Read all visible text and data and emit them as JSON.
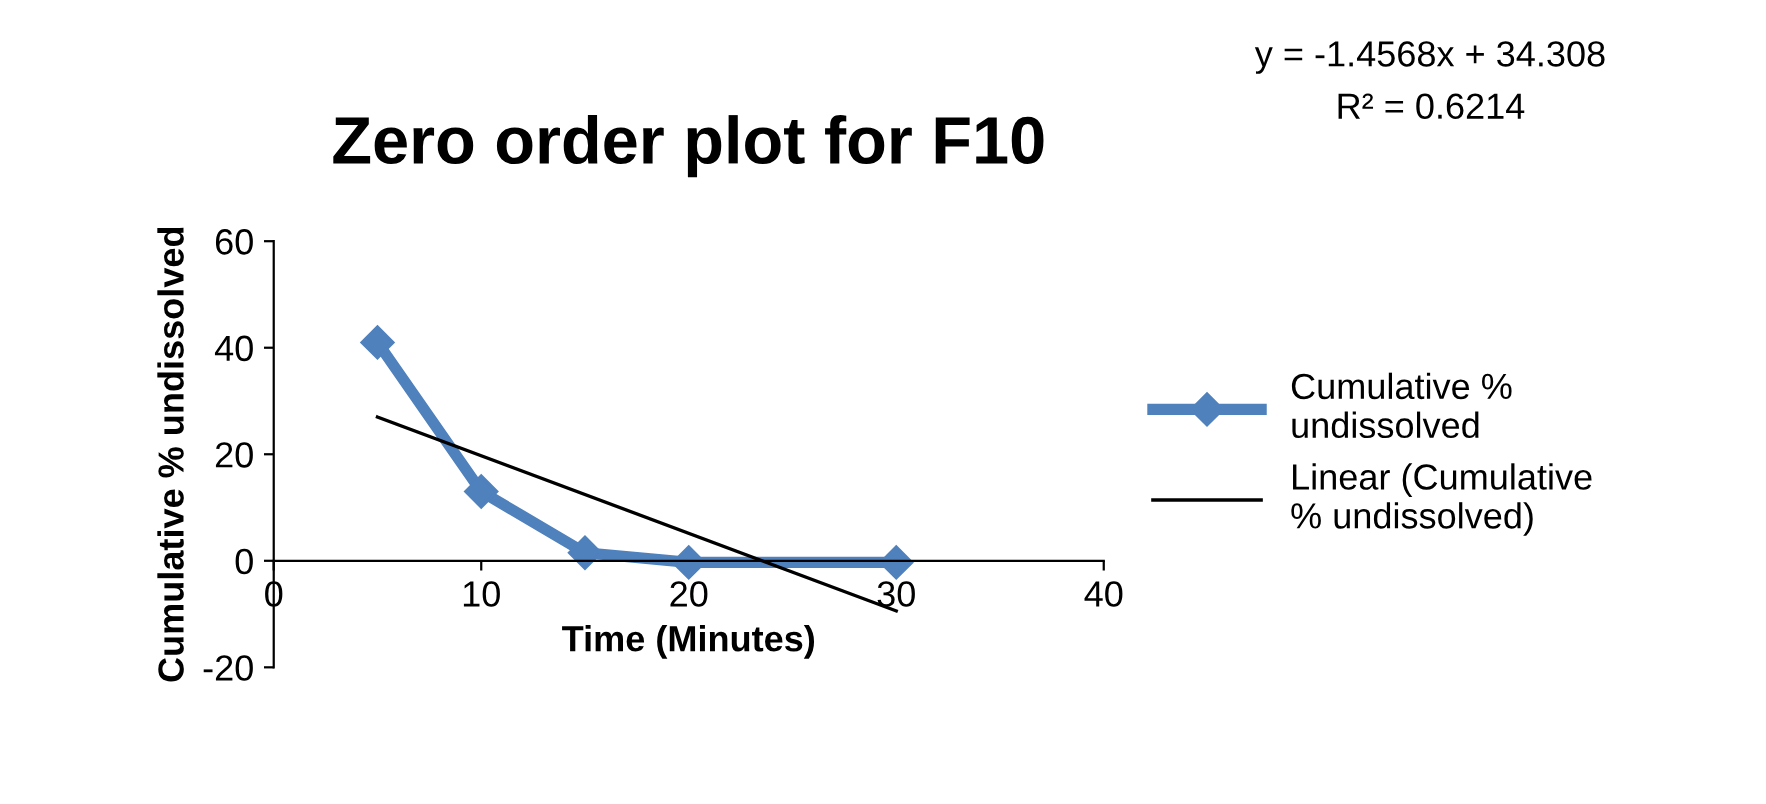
{
  "chart_data": {
    "type": "line",
    "title": "Zero order plot for F10",
    "xlabel": "Time (Minutes)",
    "ylabel": "Cumulative % undissolved",
    "xlim": [
      0,
      40
    ],
    "xticks": [
      0,
      10,
      20,
      30,
      40
    ],
    "ylim": [
      -20,
      60
    ],
    "yticks": [
      -20,
      0,
      20,
      40,
      60
    ],
    "series": [
      {
        "name": "Cumulative % undissolved",
        "color": "#4f81bd",
        "x": [
          5,
          10,
          15,
          20,
          30
        ],
        "values": [
          41,
          13,
          1.5,
          -0.3,
          -0.3
        ],
        "marker": "diamond"
      },
      {
        "name": "Linear (Cumulative % undissolved)",
        "color": "#000000",
        "x": [
          5,
          30
        ],
        "values": [
          27.0,
          -9.4
        ],
        "marker": "none"
      }
    ],
    "annotations": [
      "y = -1.4568x + 34.308",
      "R² = 0.6214"
    ],
    "legend": "right",
    "grid": false
  }
}
